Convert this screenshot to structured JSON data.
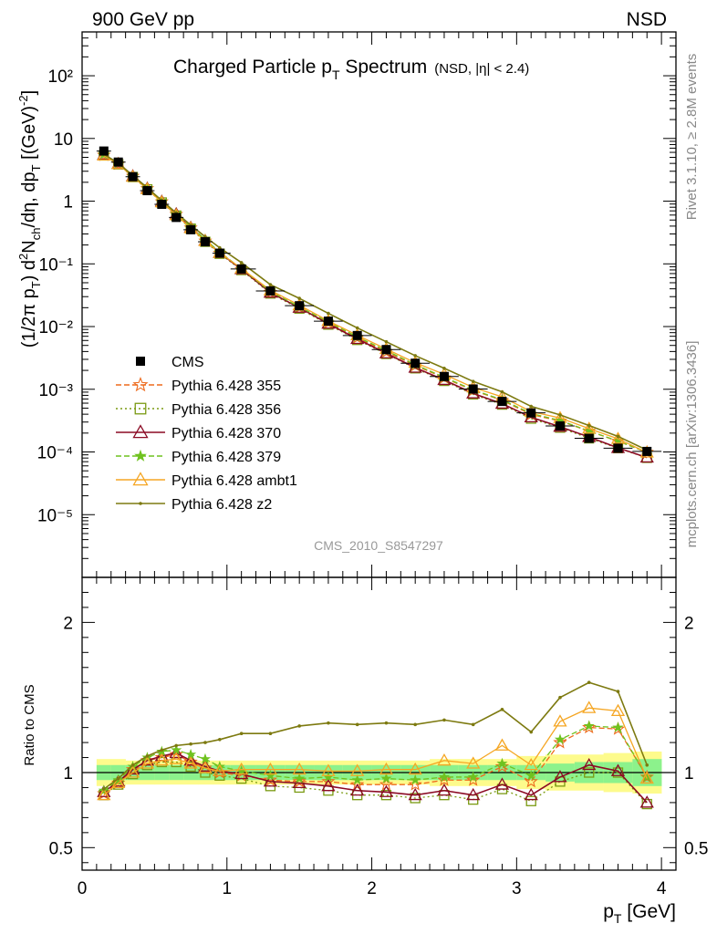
{
  "header": {
    "left": "900 GeV pp",
    "right": "NSD"
  },
  "side_text": {
    "top": "Rivet 3.1.10, ≥ 2.8M events",
    "bottom": "mcplots.cern.ch [arXiv:1306.3436]"
  },
  "chart_data": {
    "type": "line",
    "title": "Charged Particle p",
    "title_sub": "T",
    "title_tail": " Spectrum",
    "title_cond": "(NSD, |η| < 2.4)",
    "analysis_id": "CMS_2010_S8547297",
    "xlabel": "p",
    "xlabel_sub": "T",
    "xlabel_tail": " [GeV]",
    "ylabel": "(1/2π p_T) d²N_ch/dη, dp_T [(GeV)⁻²]",
    "ratio_ylabel": "Ratio to CMS",
    "xlim": [
      0,
      4.1
    ],
    "ylim": [
      1e-06,
      500
    ],
    "yscale": "log",
    "ratio_ylim": [
      0.35,
      2.3
    ],
    "x_ticks": [
      "0",
      "1",
      "2",
      "3",
      "4"
    ],
    "y_ticks": [
      "10⁻⁵",
      "10⁻⁴",
      "10⁻³",
      "10⁻²",
      "10⁻¹",
      "1",
      "10",
      "10²"
    ],
    "ratio_ticks": [
      "0.5",
      "1",
      "2"
    ],
    "colors": {
      "data": "#000000",
      "p355": "#ee6a1c",
      "p356": "#7a9a12",
      "p370": "#8b0a24",
      "p379": "#6fc21f",
      "ambt1": "#f5a623",
      "z2": "#7d7a10",
      "band_inner": "#8cf28c",
      "band_outer": "#fdfb8c"
    },
    "x": [
      0.15,
      0.25,
      0.35,
      0.45,
      0.55,
      0.65,
      0.75,
      0.85,
      0.95,
      1.1,
      1.3,
      1.5,
      1.7,
      1.9,
      2.1,
      2.3,
      2.5,
      2.7,
      2.9,
      3.1,
      3.3,
      3.5,
      3.7,
      3.9
    ],
    "data": {
      "name": "CMS",
      "values": [
        6.3,
        4.2,
        2.45,
        1.47,
        0.89,
        0.55,
        0.35,
        0.225,
        0.148,
        0.083,
        0.037,
        0.0215,
        0.0122,
        0.0072,
        0.0043,
        0.0026,
        0.0016,
        0.00101,
        0.00064,
        0.00042,
        0.00026,
        0.000165,
        0.000115,
        0.000102
      ],
      "unc_inner": [
        0.05,
        0.05,
        0.05,
        0.05,
        0.05,
        0.05,
        0.05,
        0.05,
        0.05,
        0.05,
        0.05,
        0.05,
        0.05,
        0.05,
        0.05,
        0.05,
        0.05,
        0.05,
        0.05,
        0.05,
        0.06,
        0.07,
        0.07,
        0.09
      ],
      "unc_outer": [
        0.09,
        0.09,
        0.08,
        0.08,
        0.08,
        0.08,
        0.08,
        0.08,
        0.08,
        0.08,
        0.08,
        0.08,
        0.08,
        0.08,
        0.08,
        0.08,
        0.09,
        0.09,
        0.09,
        0.11,
        0.12,
        0.12,
        0.13,
        0.14
      ]
    },
    "series": [
      {
        "name": "Pythia 6.428 355",
        "key": "p355",
        "dash": "6,3",
        "marker": "star5",
        "ratio": [
          0.86,
          0.93,
          1.02,
          1.08,
          1.1,
          1.12,
          1.07,
          1.03,
          1.0,
          0.98,
          0.95,
          0.94,
          0.94,
          0.92,
          0.92,
          0.92,
          0.95,
          0.95,
          1.04,
          0.94,
          1.2,
          1.3,
          1.29,
          0.97
        ]
      },
      {
        "name": "Pythia 6.428 356",
        "key": "p356",
        "dash": "2,3",
        "marker": "square",
        "ratio": [
          0.85,
          0.92,
          0.99,
          1.05,
          1.07,
          1.07,
          1.04,
          1.0,
          0.98,
          0.96,
          0.91,
          0.9,
          0.88,
          0.85,
          0.85,
          0.83,
          0.85,
          0.82,
          0.89,
          0.81,
          0.94,
          1.0,
          1.0,
          0.79
        ]
      },
      {
        "name": "Pythia 6.428 370",
        "key": "p370",
        "dash": "",
        "marker": "triangle",
        "ratio": [
          0.87,
          0.94,
          1.02,
          1.08,
          1.11,
          1.13,
          1.08,
          1.04,
          1.01,
          0.99,
          0.94,
          0.93,
          0.91,
          0.88,
          0.87,
          0.85,
          0.88,
          0.85,
          0.92,
          0.85,
          0.97,
          1.05,
          1.01,
          0.8
        ]
      },
      {
        "name": "Pythia 6.428 379",
        "key": "p379",
        "dash": "6,3",
        "marker": "star6",
        "ratio": [
          0.88,
          0.95,
          1.04,
          1.1,
          1.14,
          1.15,
          1.12,
          1.09,
          1.04,
          1.01,
          0.98,
          0.96,
          0.97,
          0.95,
          0.96,
          0.95,
          0.97,
          0.97,
          1.06,
          0.98,
          1.22,
          1.31,
          1.3,
          0.97
        ]
      },
      {
        "name": "Pythia 6.428 ambt1",
        "key": "ambt1",
        "dash": "",
        "marker": "triangle",
        "ratio": [
          0.85,
          0.93,
          1.0,
          1.06,
          1.08,
          1.09,
          1.06,
          1.03,
          1.01,
          1.02,
          1.02,
          1.02,
          1.01,
          1.01,
          1.02,
          1.02,
          1.08,
          1.06,
          1.18,
          1.05,
          1.34,
          1.43,
          1.41,
          0.96
        ]
      },
      {
        "name": "Pythia 6.428 z2",
        "key": "z2",
        "dash": "",
        "marker": "dot",
        "ratio": [
          0.89,
          0.96,
          1.05,
          1.11,
          1.15,
          1.18,
          1.19,
          1.2,
          1.22,
          1.26,
          1.26,
          1.31,
          1.33,
          1.32,
          1.33,
          1.32,
          1.35,
          1.32,
          1.42,
          1.27,
          1.5,
          1.6,
          1.54,
          1.05
        ]
      }
    ]
  }
}
